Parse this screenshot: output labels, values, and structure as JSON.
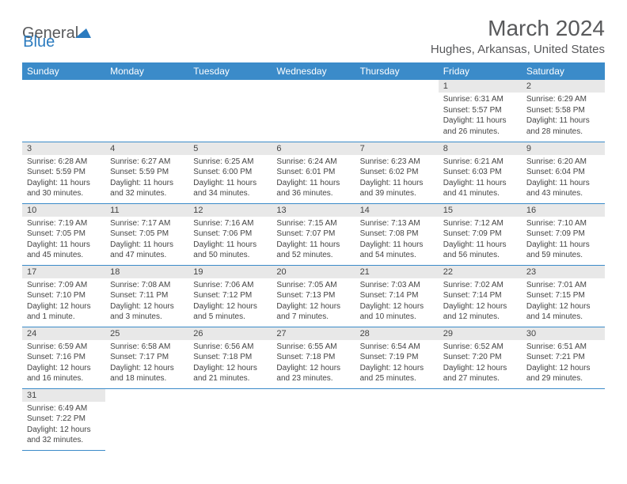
{
  "logo": {
    "general": "General",
    "blue": "Blue"
  },
  "title": "March 2024",
  "subtitle": "Hughes, Arkansas, United States",
  "colors": {
    "header_bg": "#3b8bc9",
    "header_text": "#ffffff",
    "daynum_bg": "#e8e8e8",
    "border": "#3b8bc9",
    "title_color": "#58595b",
    "logo_blue": "#2b7bbf",
    "logo_gray": "#58595b"
  },
  "weekdays": [
    "Sunday",
    "Monday",
    "Tuesday",
    "Wednesday",
    "Thursday",
    "Friday",
    "Saturday"
  ],
  "weeks": [
    [
      null,
      null,
      null,
      null,
      null,
      {
        "n": "1",
        "sr": "Sunrise: 6:31 AM",
        "ss": "Sunset: 5:57 PM",
        "dl": "Daylight: 11 hours and 26 minutes."
      },
      {
        "n": "2",
        "sr": "Sunrise: 6:29 AM",
        "ss": "Sunset: 5:58 PM",
        "dl": "Daylight: 11 hours and 28 minutes."
      }
    ],
    [
      {
        "n": "3",
        "sr": "Sunrise: 6:28 AM",
        "ss": "Sunset: 5:59 PM",
        "dl": "Daylight: 11 hours and 30 minutes."
      },
      {
        "n": "4",
        "sr": "Sunrise: 6:27 AM",
        "ss": "Sunset: 5:59 PM",
        "dl": "Daylight: 11 hours and 32 minutes."
      },
      {
        "n": "5",
        "sr": "Sunrise: 6:25 AM",
        "ss": "Sunset: 6:00 PM",
        "dl": "Daylight: 11 hours and 34 minutes."
      },
      {
        "n": "6",
        "sr": "Sunrise: 6:24 AM",
        "ss": "Sunset: 6:01 PM",
        "dl": "Daylight: 11 hours and 36 minutes."
      },
      {
        "n": "7",
        "sr": "Sunrise: 6:23 AM",
        "ss": "Sunset: 6:02 PM",
        "dl": "Daylight: 11 hours and 39 minutes."
      },
      {
        "n": "8",
        "sr": "Sunrise: 6:21 AM",
        "ss": "Sunset: 6:03 PM",
        "dl": "Daylight: 11 hours and 41 minutes."
      },
      {
        "n": "9",
        "sr": "Sunrise: 6:20 AM",
        "ss": "Sunset: 6:04 PM",
        "dl": "Daylight: 11 hours and 43 minutes."
      }
    ],
    [
      {
        "n": "10",
        "sr": "Sunrise: 7:19 AM",
        "ss": "Sunset: 7:05 PM",
        "dl": "Daylight: 11 hours and 45 minutes."
      },
      {
        "n": "11",
        "sr": "Sunrise: 7:17 AM",
        "ss": "Sunset: 7:05 PM",
        "dl": "Daylight: 11 hours and 47 minutes."
      },
      {
        "n": "12",
        "sr": "Sunrise: 7:16 AM",
        "ss": "Sunset: 7:06 PM",
        "dl": "Daylight: 11 hours and 50 minutes."
      },
      {
        "n": "13",
        "sr": "Sunrise: 7:15 AM",
        "ss": "Sunset: 7:07 PM",
        "dl": "Daylight: 11 hours and 52 minutes."
      },
      {
        "n": "14",
        "sr": "Sunrise: 7:13 AM",
        "ss": "Sunset: 7:08 PM",
        "dl": "Daylight: 11 hours and 54 minutes."
      },
      {
        "n": "15",
        "sr": "Sunrise: 7:12 AM",
        "ss": "Sunset: 7:09 PM",
        "dl": "Daylight: 11 hours and 56 minutes."
      },
      {
        "n": "16",
        "sr": "Sunrise: 7:10 AM",
        "ss": "Sunset: 7:09 PM",
        "dl": "Daylight: 11 hours and 59 minutes."
      }
    ],
    [
      {
        "n": "17",
        "sr": "Sunrise: 7:09 AM",
        "ss": "Sunset: 7:10 PM",
        "dl": "Daylight: 12 hours and 1 minute."
      },
      {
        "n": "18",
        "sr": "Sunrise: 7:08 AM",
        "ss": "Sunset: 7:11 PM",
        "dl": "Daylight: 12 hours and 3 minutes."
      },
      {
        "n": "19",
        "sr": "Sunrise: 7:06 AM",
        "ss": "Sunset: 7:12 PM",
        "dl": "Daylight: 12 hours and 5 minutes."
      },
      {
        "n": "20",
        "sr": "Sunrise: 7:05 AM",
        "ss": "Sunset: 7:13 PM",
        "dl": "Daylight: 12 hours and 7 minutes."
      },
      {
        "n": "21",
        "sr": "Sunrise: 7:03 AM",
        "ss": "Sunset: 7:14 PM",
        "dl": "Daylight: 12 hours and 10 minutes."
      },
      {
        "n": "22",
        "sr": "Sunrise: 7:02 AM",
        "ss": "Sunset: 7:14 PM",
        "dl": "Daylight: 12 hours and 12 minutes."
      },
      {
        "n": "23",
        "sr": "Sunrise: 7:01 AM",
        "ss": "Sunset: 7:15 PM",
        "dl": "Daylight: 12 hours and 14 minutes."
      }
    ],
    [
      {
        "n": "24",
        "sr": "Sunrise: 6:59 AM",
        "ss": "Sunset: 7:16 PM",
        "dl": "Daylight: 12 hours and 16 minutes."
      },
      {
        "n": "25",
        "sr": "Sunrise: 6:58 AM",
        "ss": "Sunset: 7:17 PM",
        "dl": "Daylight: 12 hours and 18 minutes."
      },
      {
        "n": "26",
        "sr": "Sunrise: 6:56 AM",
        "ss": "Sunset: 7:18 PM",
        "dl": "Daylight: 12 hours and 21 minutes."
      },
      {
        "n": "27",
        "sr": "Sunrise: 6:55 AM",
        "ss": "Sunset: 7:18 PM",
        "dl": "Daylight: 12 hours and 23 minutes."
      },
      {
        "n": "28",
        "sr": "Sunrise: 6:54 AM",
        "ss": "Sunset: 7:19 PM",
        "dl": "Daylight: 12 hours and 25 minutes."
      },
      {
        "n": "29",
        "sr": "Sunrise: 6:52 AM",
        "ss": "Sunset: 7:20 PM",
        "dl": "Daylight: 12 hours and 27 minutes."
      },
      {
        "n": "30",
        "sr": "Sunrise: 6:51 AM",
        "ss": "Sunset: 7:21 PM",
        "dl": "Daylight: 12 hours and 29 minutes."
      }
    ],
    [
      {
        "n": "31",
        "sr": "Sunrise: 6:49 AM",
        "ss": "Sunset: 7:22 PM",
        "dl": "Daylight: 12 hours and 32 minutes."
      },
      null,
      null,
      null,
      null,
      null,
      null
    ]
  ]
}
